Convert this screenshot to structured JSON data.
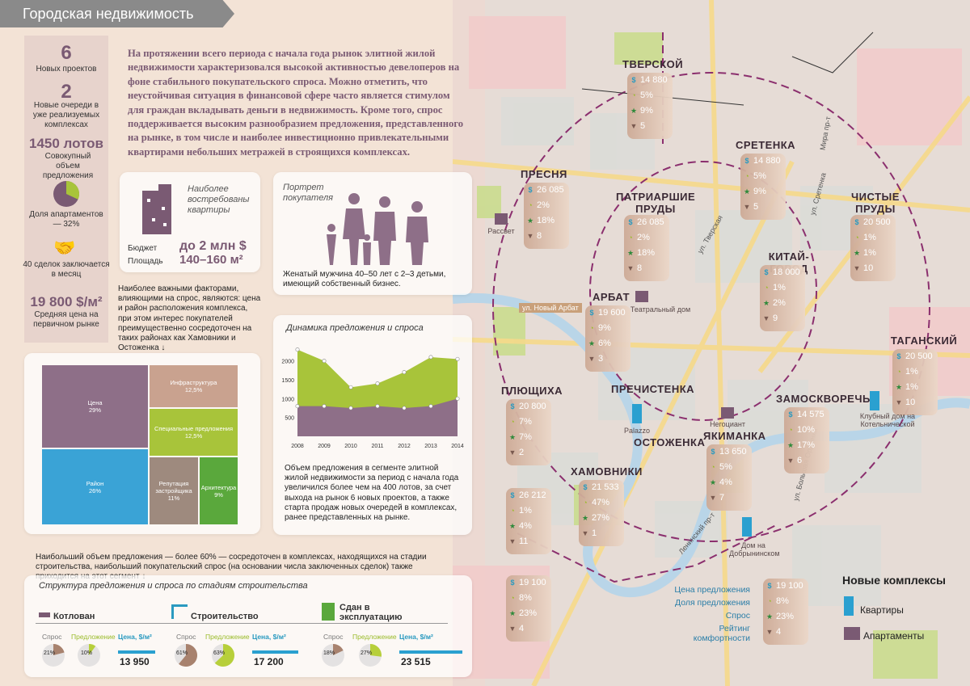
{
  "header": {
    "title": "Городская недвижимость"
  },
  "stats": {
    "new_projects": {
      "value": "6",
      "label": "Новых проектов"
    },
    "new_phases": {
      "value": "2",
      "label": "Новые очереди в уже реализуемых комплексах"
    },
    "lots": {
      "value": "1450 лотов",
      "label": "Совокупный объем предложения"
    },
    "apartments": {
      "label": "Доля апартаментов — 32%",
      "share": 32
    },
    "deals": {
      "label": "40 сделок заключается в месяц"
    },
    "avg_price": {
      "value": "19 800 $/м²",
      "label": "Средняя цена на первичном рынке"
    }
  },
  "intro": "На протяжении всего периода с начала года рынок элитной жилой недвижимости характеризовался высокой активностью девелоперов на фоне стабильного покупательского спроса. Можно отметить, что неустойчивая ситуация в финансовой сфере часто является стимулом для граждан вкладывать деньги в недвижимость. Кроме того, спрос поддерживается высоким разнообразием предложения, представленного на рынке, в том числе и наиболее инвестиционно привлекательными квартирами небольших метражей в строящихся комплексах.",
  "demanded": {
    "title": "Наиболее востребованы квартиры",
    "budget_label": "Бюджет",
    "area_label": "Площадь",
    "budget": "до 2 млн $",
    "area": "140–160 м²"
  },
  "buyer": {
    "title": "Портрет покупателя",
    "text": "Женатый мужчина 40–50 лет с 2–3 детьми, имеющий собственный бизнес."
  },
  "factors": "Наиболее важными факторами, влияющими на спрос, являются: цена и район расположения комплекса, при этом интерес покупателей преимущественно сосредоточен на таких районах как Хамовники и Остоженка ↓",
  "treemap": [
    {
      "name": "Цена",
      "pct": "29%",
      "color": "#8e6f88"
    },
    {
      "name": "Район",
      "pct": "26%",
      "color": "#3aa3d6"
    },
    {
      "name": "Инфраструктура",
      "pct": "12,5%",
      "color": "#c9a28f"
    },
    {
      "name": "Специальные предложения",
      "pct": "12,5%",
      "color": "#a8c43a"
    },
    {
      "name": "Репутация застройщика",
      "pct": "11%",
      "color": "#9e8a7e"
    },
    {
      "name": "Архитектура",
      "pct": "9%",
      "color": "#5aa83c"
    }
  ],
  "dynamics": {
    "title": "Динамика предложения и спроса",
    "text": "Объем предложения в сегменте элитной жилой недвижимости за период с начала года увеличился более чем на 400 лотов, за счет выхода на рынок 6 новых проектов, а также старта продаж новых очередей в комплексах, ранее представленных на рынке."
  },
  "chart_data": {
    "type": "area",
    "title": "Динамика предложения и спроса",
    "x": [
      "2008",
      "2009",
      "2010",
      "2011",
      "2012",
      "2013",
      "2014"
    ],
    "series": [
      {
        "name": "Предложение",
        "values": [
          2300,
          2000,
          1300,
          1400,
          1700,
          2100,
          2050
        ],
        "color": "#a8c43a"
      },
      {
        "name": "Спрос",
        "values": [
          800,
          800,
          750,
          800,
          750,
          800,
          1000
        ],
        "color": "#8e6f88"
      }
    ],
    "yticks": [
      "500",
      "1000",
      "1500",
      "2000"
    ],
    "ylim": [
      0,
      2400
    ]
  },
  "bottom_note": "Наибольший объем предложения — более 60% — сосредоточен в комплексах, находящихся на стадии строительства, наибольший покупательский спрос (на основании числа заключенных сделок) также приходится на этот сегмент ↓",
  "stages_title": "Структура предложения и спроса по стадиям строительства",
  "stages": [
    {
      "name": "Котлован",
      "demand": "21%",
      "supply": "10%",
      "demand_val": 21,
      "supply_val": 10,
      "price": "13 950",
      "price_fill": 0.59
    },
    {
      "name": "Строительство",
      "demand": "61%",
      "supply": "63%",
      "demand_val": 61,
      "supply_val": 63,
      "price": "17 200",
      "price_fill": 0.73
    },
    {
      "name": "Сдан в эксплуатацию",
      "demand": "18%",
      "supply": "27%",
      "demand_val": 18,
      "supply_val": 27,
      "price": "23 515",
      "price_fill": 1.0
    }
  ],
  "stage_labels": {
    "demand": "Спрос",
    "supply": "Предложение",
    "price": "Цена, $/м²"
  },
  "districts": [
    {
      "name": "ТВЕРСКОЙ",
      "price": "14 880",
      "share": "5%",
      "demand": "9%",
      "comfort": "5"
    },
    {
      "name": "СРЕТЕНКА",
      "price": "14 880",
      "share": "5%",
      "demand": "9%",
      "comfort": "5"
    },
    {
      "name": "ПРЕСНЯ",
      "price": "26 085",
      "share": "2%",
      "demand": "18%",
      "comfort": "8"
    },
    {
      "name": "ПАТРИАРШИЕ ПРУДЫ",
      "price": "26 085",
      "share": "2%",
      "demand": "18%",
      "comfort": "8"
    },
    {
      "name": "ЧИСТЫЕ ПРУДЫ",
      "price": "20 500",
      "share": "1%",
      "demand": "1%",
      "comfort": "10"
    },
    {
      "name": "КИТАЙ-ГОРОД",
      "price": "18 000",
      "share": "1%",
      "demand": "2%",
      "comfort": "9"
    },
    {
      "name": "АРБАТ",
      "price": "19 600",
      "share": "9%",
      "demand": "6%",
      "comfort": "3"
    },
    {
      "name": "ТАГАНСКИЙ",
      "price": "20 500",
      "share": "1%",
      "demand": "1%",
      "comfort": "10"
    },
    {
      "name": "ПЛЮЩИХА",
      "price": "20 800",
      "share": "7%",
      "demand": "7%",
      "comfort": "2"
    },
    {
      "name": "ЗАМОСКВОРЕЧЬЕ",
      "price": "14 575",
      "share": "10%",
      "demand": "17%",
      "comfort": "6"
    },
    {
      "name": "ЯКИМАНКА",
      "price": "13 650",
      "share": "5%",
      "demand": "4%",
      "comfort": "7"
    },
    {
      "name": "ХАМОВНИКИ",
      "price": "26 212",
      "share": "1%",
      "demand": "4%",
      "comfort": "11"
    },
    {
      "name": "ОСТОЖЕНКА",
      "price": "21 533",
      "share": "47%",
      "demand": "27%",
      "comfort": "1"
    },
    {
      "name": "",
      "price": "19 100",
      "share": "8%",
      "demand": "23%",
      "comfort": "4"
    }
  ],
  "district_extra": {
    "prechistenka": "ПРЕЧИСТЕНКА"
  },
  "buildings": [
    "Рассвет",
    "Театральный дом",
    "Негоциант",
    "Palazzo",
    "Клубный дом на Котельнической",
    "Дом на Добрынинском"
  ],
  "streets": [
    "ул. Новый Арбат",
    "ул. Тверская",
    "Мира пр-т",
    "ул. Сретенка",
    "Ленинский пр-т",
    "ул. Большая Ордынка"
  ],
  "legend": {
    "rows": [
      "Цена предложения",
      "Доля предложения",
      "Спрос",
      "Рейтинг комфортности"
    ],
    "sample": {
      "price": "19 100",
      "share": "8%",
      "demand": "23%",
      "comfort": "4"
    },
    "title": "Новые комплексы",
    "flats": "Квартиры",
    "apartments": "Апартаменты"
  },
  "colors": {
    "accent": "#8e6f88",
    "lime": "#a8c43a",
    "blue": "#3aa3d6",
    "bg": "#f3e3d6"
  }
}
